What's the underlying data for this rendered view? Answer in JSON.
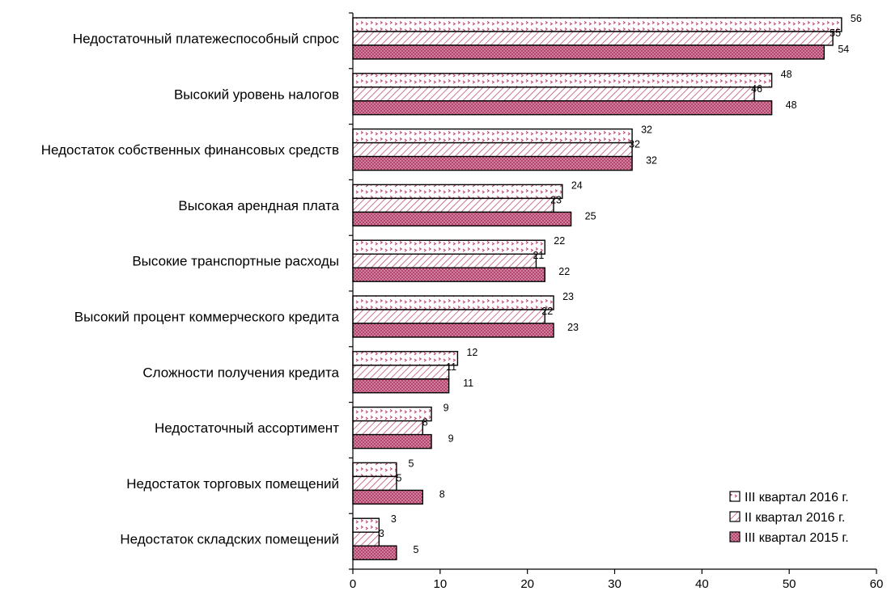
{
  "chart_data": {
    "type": "bar",
    "orientation": "horizontal",
    "title": "",
    "xlabel": "",
    "ylabel": "",
    "xlim": [
      0,
      60
    ],
    "xticks": [
      "0",
      "10",
      "20",
      "30",
      "40",
      "50",
      "60"
    ],
    "grid": false,
    "legend_position": "bottom-right",
    "categories": [
      "Недостаточный платежеспособный спрос",
      "Высокий уровень налогов",
      "Недостаток собственных финансовых средств",
      "Высокая арендная плата",
      "Высокие транспортные расходы",
      "Высокий процент коммерческого кредита",
      "Сложности получения кредита",
      "Недостаточный ассортимент",
      "Недостаток торговых помещений",
      "Недостаток складских помещений"
    ],
    "series": [
      {
        "name": "III квартал 2016 г.",
        "pattern": "chevron",
        "color": "#c0507a",
        "values": [
          56,
          48,
          32,
          24,
          22,
          23,
          12,
          9,
          5,
          3
        ]
      },
      {
        "name": "II квартал 2016 г.",
        "pattern": "diagonal",
        "color": "#c0507a",
        "values": [
          55,
          46,
          32,
          23,
          21,
          22,
          11,
          8,
          5,
          3
        ]
      },
      {
        "name": "III квартал 2015 г.",
        "pattern": "dots",
        "color": "#b5456e",
        "values": [
          54,
          48,
          32,
          25,
          22,
          23,
          11,
          9,
          8,
          5
        ]
      }
    ]
  }
}
